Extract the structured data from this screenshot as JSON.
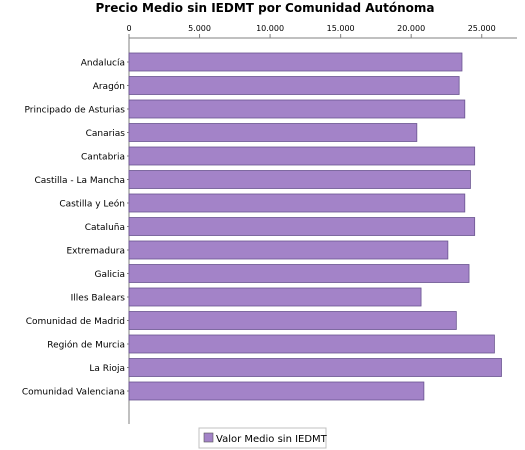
{
  "chart_data": {
    "type": "bar",
    "orientation": "horizontal",
    "title": "Precio Medio sin IEDMT por Comunidad Autónoma",
    "xlabel": "",
    "ylabel": "",
    "xlim": [
      0,
      27500
    ],
    "x_ticks": [
      0,
      5000,
      10000,
      15000,
      20000,
      25000
    ],
    "x_tick_labels": [
      "0",
      "5.000",
      "10.000",
      "15.000",
      "20.000",
      "25.000"
    ],
    "axis_position": "top",
    "grid": false,
    "legend_position": "bottom-center",
    "categories": [
      "Andalucía",
      "Aragón",
      "Principado de Asturias",
      "Canarias",
      "Cantabria",
      "Castilla - La Mancha",
      "Castilla y León",
      "Cataluña",
      "Extremadura",
      "Galicia",
      "Illes Balears",
      "Comunidad de Madrid",
      "Región de Murcia",
      "La Rioja",
      "Comunidad Valenciana"
    ],
    "series": [
      {
        "name": "Valor Medio sin IEDMT",
        "color": "#a383c8",
        "values": [
          23600,
          23400,
          23800,
          20400,
          24500,
          24200,
          23800,
          24500,
          22600,
          24100,
          20700,
          23200,
          25900,
          26400,
          20900
        ]
      }
    ]
  }
}
